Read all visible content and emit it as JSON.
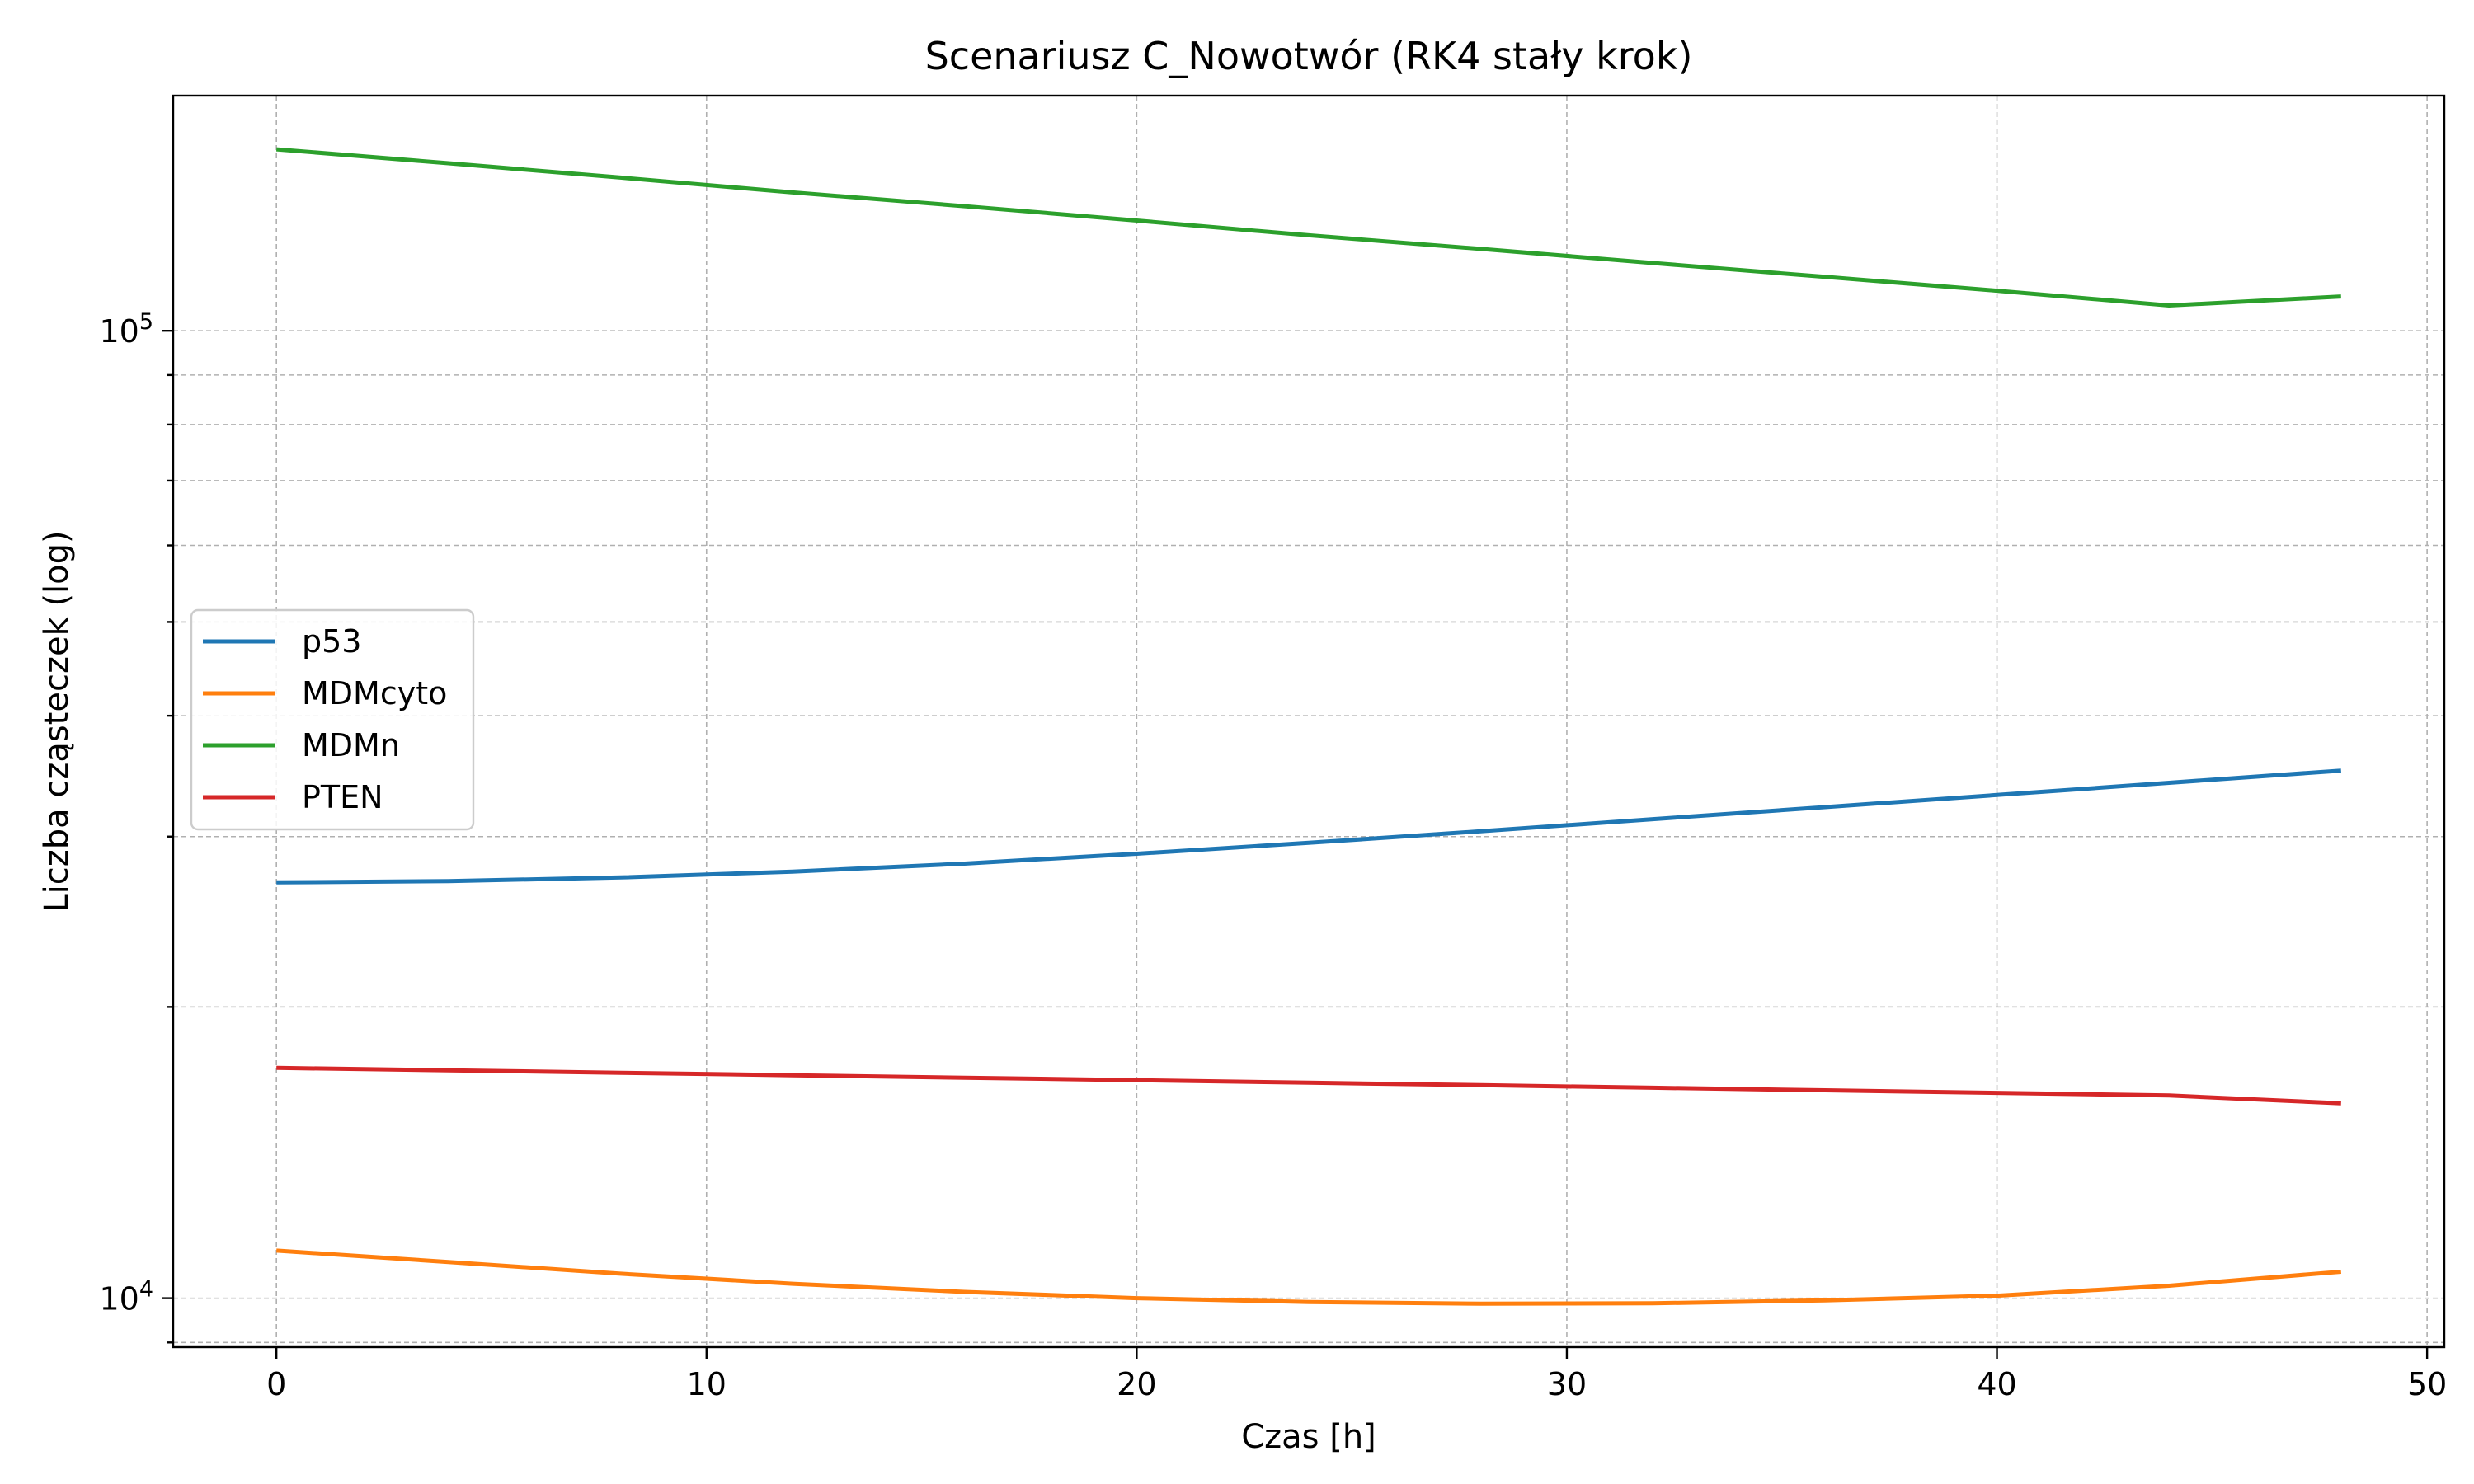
{
  "chart_data": {
    "type": "line",
    "title": "Scenariusz C_Nowotwór (RK4 stały krok)",
    "xlabel": "Czas [h]",
    "ylabel": "Liczba cząsteczek (log)",
    "xlim": [
      -2.4,
      50.4
    ],
    "ylim": [
      8900,
      175000
    ],
    "yscale": "log",
    "grid": true,
    "legend_position": "center-left",
    "x_ticks": [
      0,
      10,
      20,
      30,
      40,
      50
    ],
    "x_tick_labels": [
      "0",
      "10",
      "20",
      "30",
      "40",
      "50"
    ],
    "y_major_ticks": [
      10000,
      100000
    ],
    "y_major_tick_base": "10",
    "y_major_tick_exponents": [
      "4",
      "5"
    ],
    "y_minor_ticks": [
      9000,
      20000,
      30000,
      40000,
      50000,
      60000,
      70000,
      80000,
      90000
    ],
    "x": [
      0,
      4,
      8,
      12,
      16,
      20,
      24,
      28,
      32,
      36,
      40,
      44,
      48
    ],
    "series": [
      {
        "name": "p53",
        "color": "#1f77b4",
        "values": [
          26900,
          26980,
          27220,
          27600,
          28130,
          28800,
          29560,
          30380,
          31270,
          32180,
          33120,
          34100,
          35100
        ]
      },
      {
        "name": "MDMcyto",
        "color": "#ff7f0e",
        "values": [
          11200,
          10900,
          10600,
          10350,
          10150,
          10000,
          9910,
          9870,
          9880,
          9950,
          10060,
          10300,
          10650
        ]
      },
      {
        "name": "MDMn",
        "color": "#2ca02c",
        "values": [
          154000,
          149000,
          144000,
          139000,
          134500,
          130000,
          125500,
          121500,
          117500,
          113700,
          110000,
          106200,
          108500
        ]
      },
      {
        "name": "PTEN",
        "color": "#d62728",
        "values": [
          17300,
          17200,
          17100,
          17000,
          16900,
          16800,
          16700,
          16600,
          16500,
          16400,
          16300,
          16200,
          15900
        ]
      }
    ]
  }
}
